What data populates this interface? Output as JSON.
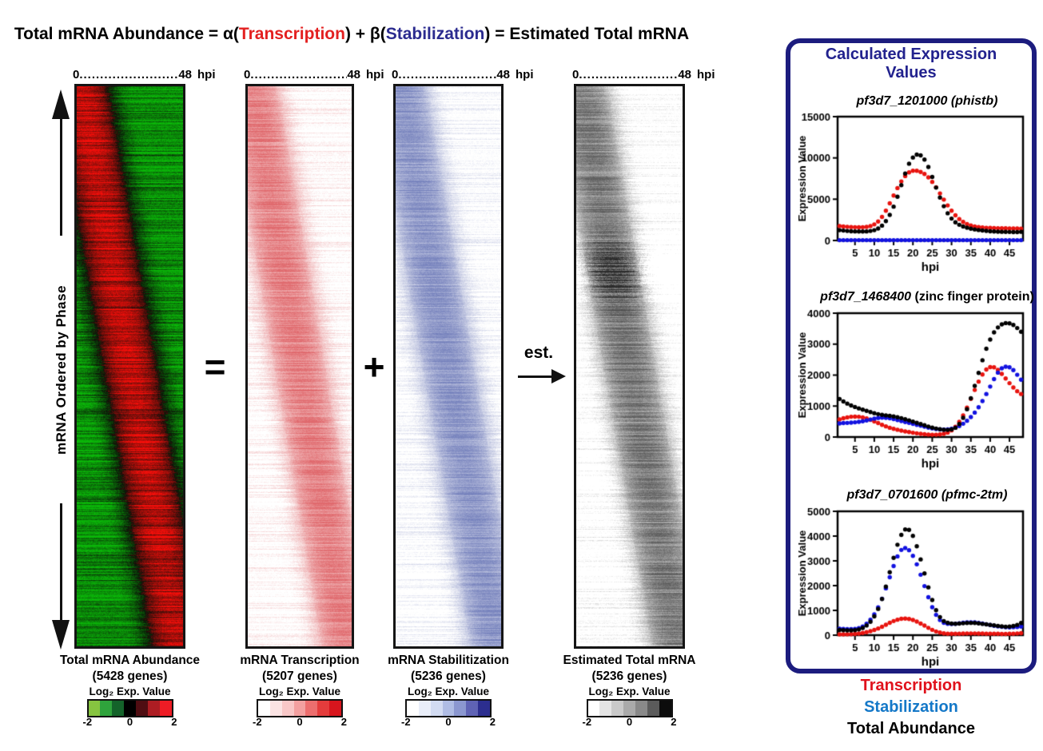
{
  "equation": {
    "prefix": "Total mRNA Abundance = α(",
    "transcription": "Transcription",
    "middle": ") + β(",
    "stabilization": "Stabilization",
    "suffix": ") = Estimated Total mRNA"
  },
  "colors": {
    "equation_transcription_red": "#e32020",
    "equation_stabilization_navy": "#2b2b8f",
    "panel_border_navy": "#1c1c7e",
    "panel_title_navy": "#22228e",
    "legend_red": "#e0111c",
    "legend_blue": "#1478c8",
    "legend_black": "#000000"
  },
  "left_axis_label": "mRNA Ordered by Phase",
  "time_axis": {
    "start": "0",
    "dots": "................................................",
    "end": "48",
    "unit": "hpi"
  },
  "operators": {
    "equals": "=",
    "plus": "+",
    "est": "est."
  },
  "heatmaps": [
    {
      "caption_line1": "Total mRNA Abundance",
      "caption_line2": "(5428 genes)",
      "scale_label": "Log₂ Exp. Value",
      "scale_ticks": [
        "-2",
        "0",
        "2"
      ],
      "palette": "red-green",
      "scale_colors": [
        "#86c440",
        "#2fa33c",
        "#14632a",
        "#000000",
        "#4f0d12",
        "#ad1d23",
        "#ee1c25"
      ]
    },
    {
      "caption_line1": "mRNA Transcription",
      "caption_line2": "(5207 genes)",
      "scale_label": "Log₂ Exp. Value",
      "scale_ticks": [
        "-2",
        "0",
        "2"
      ],
      "palette": "white-red",
      "scale_colors": [
        "#ffffff",
        "#fbe3e3",
        "#f8c7c7",
        "#f3a0a0",
        "#ec6e6e",
        "#e43c3c",
        "#d8151d"
      ]
    },
    {
      "caption_line1": "mRNA Stabilitization",
      "caption_line2": "(5236 genes)",
      "scale_label": "Log₂ Exp. Value",
      "scale_ticks": [
        "-2",
        "0",
        "2"
      ],
      "palette": "white-blue",
      "scale_colors": [
        "#ffffff",
        "#e9eef9",
        "#d2dbf2",
        "#afbce4",
        "#8b97d0",
        "#5f63b5",
        "#2c2e8f"
      ]
    },
    {
      "caption_line1": "Estimated Total mRNA",
      "caption_line2": "(5236 genes)",
      "scale_label": "Log₂ Exp. Value",
      "scale_ticks": [
        "-2",
        "0",
        "2"
      ],
      "palette": "white-black",
      "scale_colors": [
        "#ffffff",
        "#e4e4e4",
        "#c9c9c9",
        "#aaaaaa",
        "#898989",
        "#5b5b5b",
        "#0c0c0c"
      ]
    }
  ],
  "panel": {
    "title": "Calculated Expression Values",
    "legend": [
      {
        "label": "Transcription",
        "color": "#e0111c"
      },
      {
        "label": "Stabilization",
        "color": "#1478c8"
      },
      {
        "label": "Total Abundance",
        "color": "#000000"
      }
    ]
  },
  "chart_data": [
    {
      "type": "scatter",
      "gene": "pf3d7_1201000",
      "desc_label": "(phistb)",
      "title": "pf3d7_1201000 (phistb)",
      "xlabel": "hpi",
      "ylabel": "Expression Value",
      "ylim": [
        0,
        15000
      ],
      "yticks": [
        0,
        5000,
        10000,
        15000
      ],
      "xticks": [
        5,
        10,
        15,
        20,
        25,
        30,
        35,
        40,
        45
      ],
      "x": [
        1,
        2,
        3,
        4,
        5,
        6,
        7,
        8,
        9,
        10,
        11,
        12,
        13,
        14,
        15,
        16,
        17,
        18,
        19,
        20,
        21,
        22,
        23,
        24,
        25,
        26,
        27,
        28,
        29,
        30,
        31,
        32,
        33,
        34,
        35,
        36,
        37,
        38,
        39,
        40,
        41,
        42,
        43,
        44,
        45,
        46,
        47,
        48
      ],
      "series": [
        {
          "name": "Transcription",
          "color": "#e8140f",
          "values": [
            1750,
            1700,
            1660,
            1630,
            1610,
            1600,
            1610,
            1650,
            1750,
            1950,
            2300,
            2850,
            3600,
            4500,
            5450,
            6350,
            7150,
            7800,
            8250,
            8450,
            8450,
            8300,
            8050,
            7650,
            7100,
            6450,
            5700,
            4950,
            4250,
            3600,
            3050,
            2600,
            2250,
            2000,
            1820,
            1700,
            1620,
            1570,
            1540,
            1520,
            1500,
            1490,
            1480,
            1470,
            1460,
            1450,
            1450,
            1440
          ]
        },
        {
          "name": "Stabilization",
          "color": "#1212e0",
          "values": [
            40,
            40,
            40,
            40,
            40,
            40,
            40,
            40,
            40,
            40,
            40,
            40,
            40,
            40,
            40,
            40,
            40,
            40,
            40,
            40,
            40,
            40,
            40,
            40,
            40,
            40,
            40,
            40,
            40,
            40,
            40,
            40,
            40,
            40,
            40,
            40,
            40,
            40,
            40,
            40,
            40,
            40,
            40,
            40,
            40,
            40,
            40,
            40
          ]
        },
        {
          "name": "Total Abundance",
          "color": "#000000",
          "values": [
            1250,
            1200,
            1150,
            1120,
            1100,
            1090,
            1090,
            1100,
            1150,
            1250,
            1450,
            1800,
            2350,
            3100,
            4100,
            5300,
            6700,
            8100,
            9300,
            10050,
            10400,
            10300,
            9800,
            8900,
            7700,
            6400,
            5200,
            4150,
            3300,
            2650,
            2200,
            1900,
            1700,
            1550,
            1430,
            1340,
            1270,
            1210,
            1160,
            1120,
            1090,
            1070,
            1050,
            1040,
            1030,
            1020,
            1020,
            1050
          ]
        }
      ]
    },
    {
      "type": "scatter",
      "gene": "pf3d7_1468400",
      "desc_label": "(zinc finger protein)",
      "title": "pf3d7_1468400 (zinc finger protein)",
      "xlabel": "hpi",
      "ylabel": "Expression Value",
      "ylim": [
        0,
        4000
      ],
      "yticks": [
        0,
        1000,
        2000,
        3000,
        4000
      ],
      "xticks": [
        5,
        10,
        15,
        20,
        25,
        30,
        35,
        40,
        45
      ],
      "x": [
        1,
        2,
        3,
        4,
        5,
        6,
        7,
        8,
        9,
        10,
        11,
        12,
        13,
        14,
        15,
        16,
        17,
        18,
        19,
        20,
        21,
        22,
        23,
        24,
        25,
        26,
        27,
        28,
        29,
        30,
        31,
        32,
        33,
        34,
        35,
        36,
        37,
        38,
        39,
        40,
        41,
        42,
        43,
        44,
        45,
        46,
        47,
        48
      ],
      "series": [
        {
          "name": "Transcription",
          "color": "#e8140f",
          "values": [
            570,
            605,
            635,
            655,
            660,
            655,
            635,
            600,
            555,
            505,
            450,
            395,
            345,
            300,
            265,
            235,
            205,
            180,
            160,
            140,
            120,
            105,
            90,
            80,
            75,
            75,
            85,
            105,
            145,
            215,
            330,
            490,
            700,
            950,
            1230,
            1520,
            1790,
            2020,
            2180,
            2260,
            2250,
            2170,
            2040,
            1890,
            1740,
            1600,
            1480,
            1390
          ]
        },
        {
          "name": "Stabilization",
          "color": "#1212e0",
          "values": [
            440,
            450,
            455,
            465,
            475,
            490,
            510,
            535,
            565,
            595,
            615,
            625,
            620,
            605,
            580,
            550,
            515,
            485,
            455,
            425,
            395,
            365,
            335,
            305,
            280,
            260,
            245,
            240,
            245,
            265,
            300,
            355,
            430,
            525,
            645,
            790,
            960,
            1160,
            1390,
            1630,
            1870,
            2080,
            2220,
            2270,
            2250,
            2160,
            2010,
            1850
          ]
        },
        {
          "name": "Total Abundance",
          "color": "#000000",
          "values": [
            1230,
            1150,
            1080,
            1020,
            970,
            925,
            885,
            845,
            805,
            770,
            740,
            715,
            700,
            685,
            665,
            640,
            610,
            575,
            540,
            500,
            460,
            420,
            380,
            340,
            305,
            275,
            250,
            235,
            230,
            245,
            300,
            420,
            620,
            900,
            1250,
            1650,
            2070,
            2480,
            2850,
            3150,
            3380,
            3540,
            3640,
            3680,
            3670,
            3620,
            3520,
            3400
          ]
        }
      ]
    },
    {
      "type": "scatter",
      "gene": "pf3d7_0701600",
      "desc_label": "(pfmc-2tm)",
      "title": "pf3d7_0701600 (pfmc-2tm)",
      "xlabel": "hpi",
      "ylabel": "Expression Value",
      "ylim": [
        0,
        5000
      ],
      "yticks": [
        0,
        1000,
        2000,
        3000,
        4000,
        5000
      ],
      "xticks": [
        5,
        10,
        15,
        20,
        25,
        30,
        35,
        40,
        45
      ],
      "x": [
        1,
        2,
        3,
        4,
        5,
        6,
        7,
        8,
        9,
        10,
        11,
        12,
        13,
        14,
        15,
        16,
        17,
        18,
        19,
        20,
        21,
        22,
        23,
        24,
        25,
        26,
        27,
        28,
        29,
        30,
        31,
        32,
        33,
        34,
        35,
        36,
        37,
        38,
        39,
        40,
        41,
        42,
        43,
        44,
        45,
        46,
        47,
        48
      ],
      "series": [
        {
          "name": "Transcription",
          "color": "#e8140f",
          "values": [
            30,
            30,
            35,
            40,
            50,
            65,
            90,
            120,
            160,
            210,
            270,
            340,
            420,
            500,
            570,
            625,
            660,
            670,
            655,
            615,
            550,
            470,
            385,
            295,
            215,
            150,
            105,
            75,
            60,
            55,
            55,
            60,
            65,
            70,
            70,
            70,
            65,
            65,
            60,
            60,
            55,
            55,
            50,
            50,
            55,
            60,
            70,
            80
          ]
        },
        {
          "name": "Stabilization",
          "color": "#1212e0",
          "values": [
            260,
            250,
            245,
            245,
            255,
            285,
            350,
            460,
            620,
            840,
            1120,
            1470,
            1890,
            2340,
            2790,
            3180,
            3440,
            3520,
            3430,
            3200,
            2860,
            2440,
            1980,
            1530,
            1130,
            820,
            610,
            500,
            460,
            450,
            460,
            480,
            500,
            515,
            520,
            515,
            495,
            470,
            440,
            410,
            380,
            355,
            335,
            320,
            315,
            320,
            330,
            345
          ]
        },
        {
          "name": "Total Abundance",
          "color": "#000000",
          "values": [
            210,
            200,
            195,
            195,
            205,
            230,
            290,
            390,
            540,
            760,
            1060,
            1460,
            1960,
            2540,
            3120,
            3650,
            4050,
            4270,
            4250,
            4010,
            3590,
            3060,
            2490,
            1930,
            1420,
            1010,
            730,
            570,
            500,
            470,
            460,
            470,
            480,
            490,
            495,
            490,
            475,
            455,
            435,
            415,
            395,
            375,
            355,
            340,
            345,
            370,
            415,
            490
          ]
        }
      ]
    }
  ]
}
